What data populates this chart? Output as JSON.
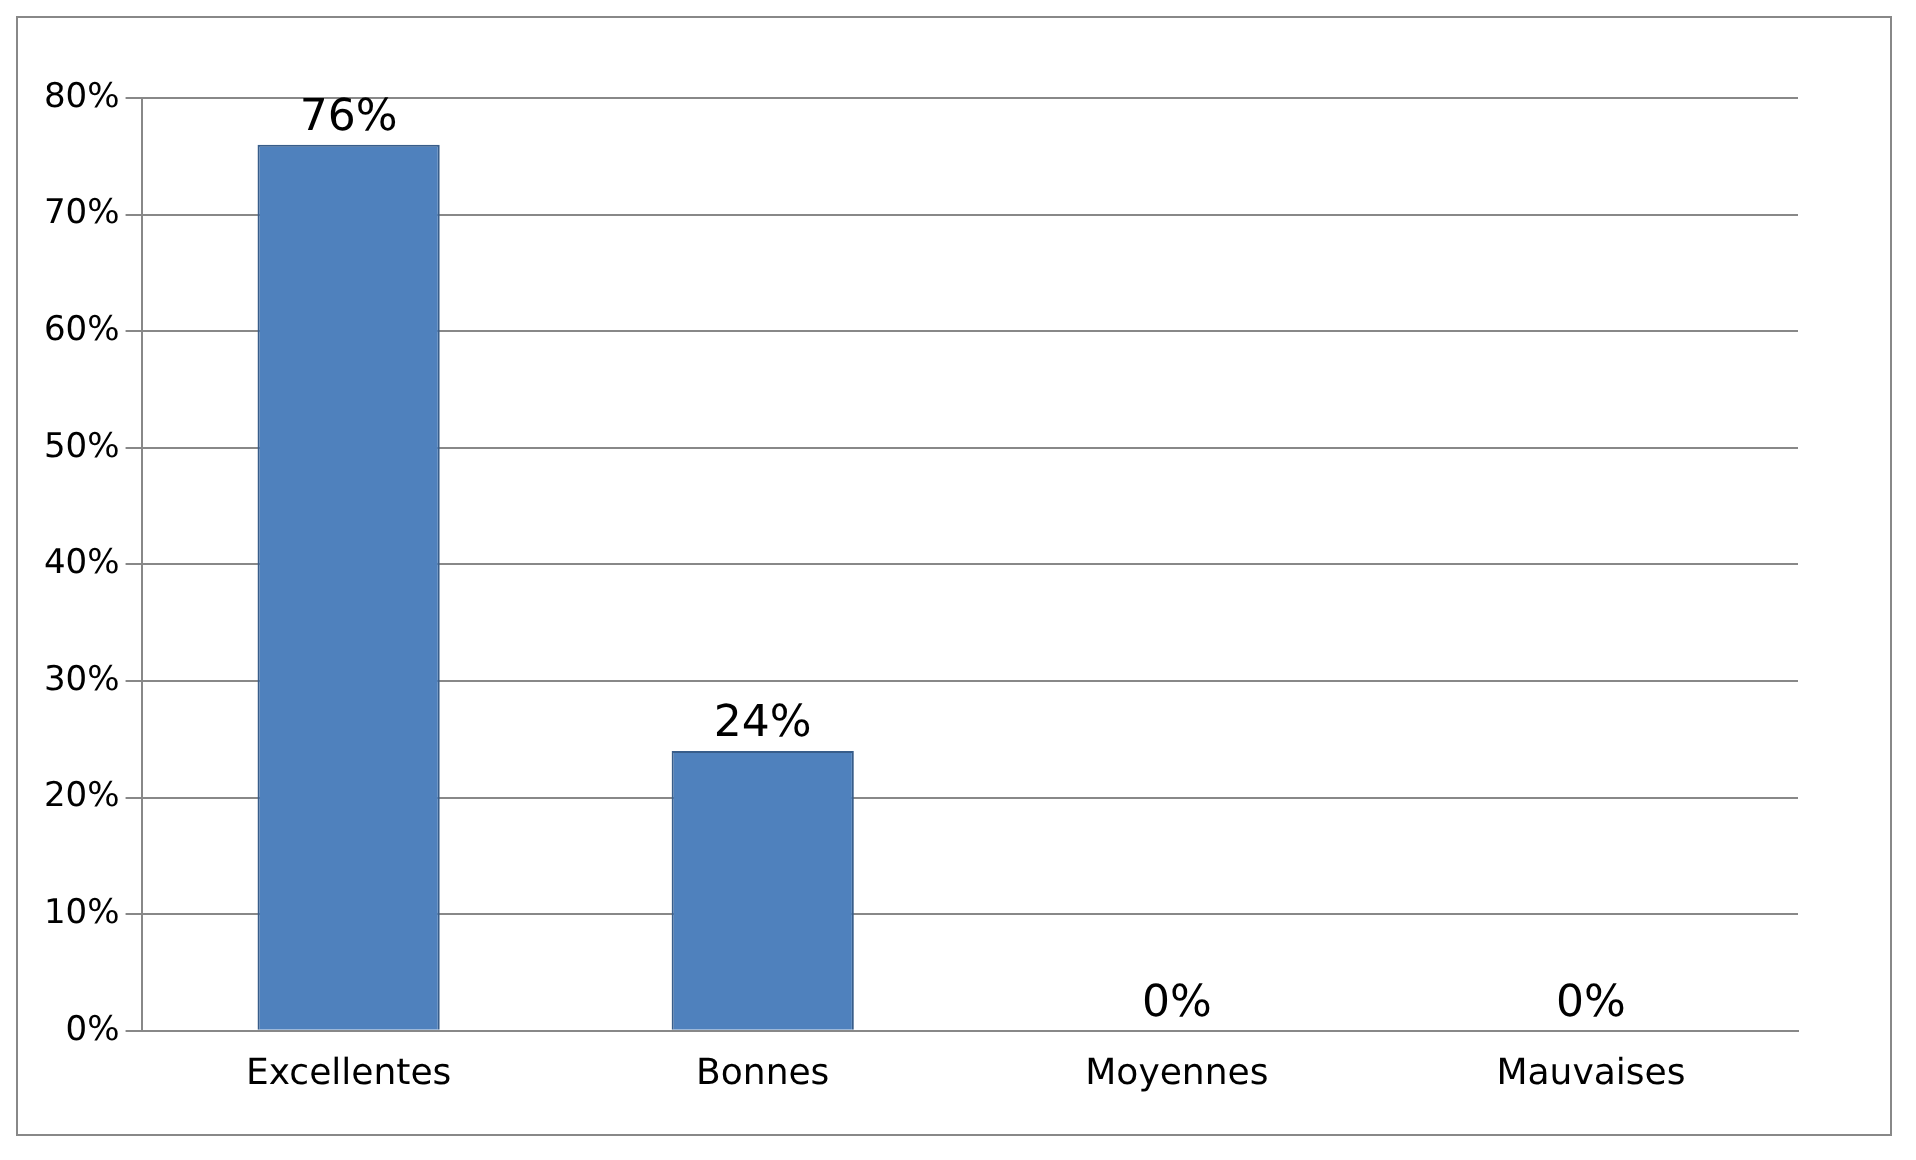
{
  "chart_data": {
    "type": "bar",
    "categories": [
      "Excellentes",
      "Bonnes",
      "Moyennes",
      "Mauvaises"
    ],
    "values": [
      76,
      24,
      0,
      0
    ],
    "value_labels": [
      "76%",
      "24%",
      "0%",
      "0%"
    ],
    "color": "#4f81bd",
    "ylim": [
      0,
      80
    ],
    "yticks": [
      {
        "value": 0,
        "label": "0%"
      },
      {
        "value": 10,
        "label": "10%"
      },
      {
        "value": 20,
        "label": "20%"
      },
      {
        "value": 30,
        "label": "30%"
      },
      {
        "value": 40,
        "label": "40%"
      },
      {
        "value": 50,
        "label": "50%"
      },
      {
        "value": 60,
        "label": "60%"
      },
      {
        "value": 70,
        "label": "70%"
      },
      {
        "value": 80,
        "label": "80%"
      }
    ],
    "grid": "y",
    "legend": false
  }
}
